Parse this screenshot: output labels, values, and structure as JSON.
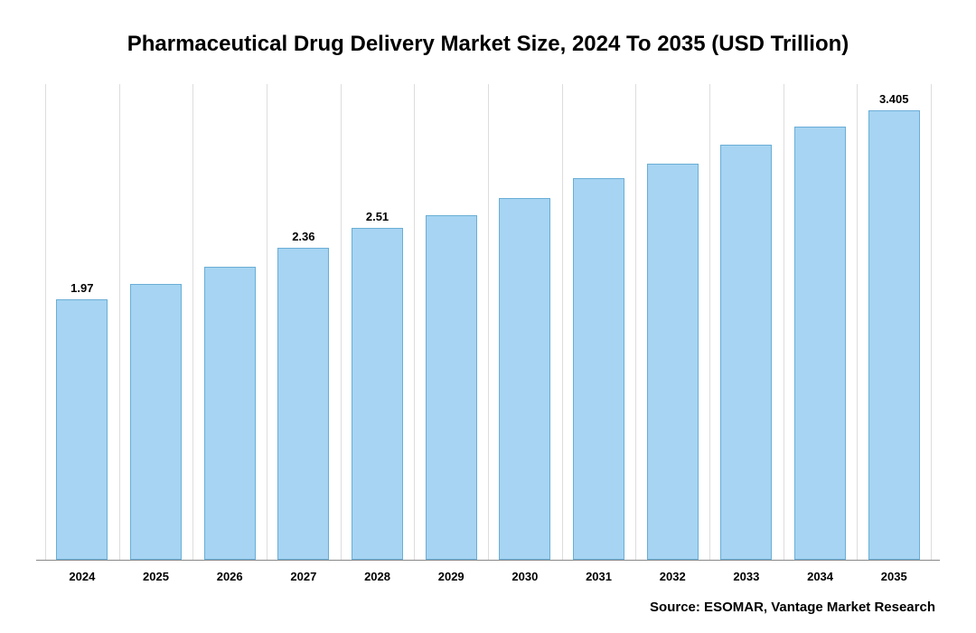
{
  "chart": {
    "type": "bar",
    "title": "Pharmaceutical Drug Delivery Market Size, 2024 To 2035 (USD Trillion)",
    "title_fontsize": 24,
    "title_fontweight": 700,
    "title_color": "#000000",
    "categories": [
      "2024",
      "2025",
      "2026",
      "2027",
      "2028",
      "2029",
      "2030",
      "2031",
      "2032",
      "2033",
      "2034",
      "2035"
    ],
    "values": [
      1.97,
      2.09,
      2.22,
      2.36,
      2.51,
      2.61,
      2.74,
      2.89,
      3.0,
      3.14,
      3.28,
      3.405
    ],
    "value_labels_visible": [
      "1.97",
      "",
      "",
      "2.36",
      "2.51",
      "",
      "",
      "",
      "",
      "",
      "",
      "3.405"
    ],
    "bar_fill_color": "#a6d4f2",
    "bar_border_color": "#6aaed6",
    "bar_width_ratio": 0.7,
    "ylim": [
      0,
      3.6
    ],
    "background_color": "#ffffff",
    "grid_color": "#dddddd",
    "axis_line_color": "#888888",
    "xaxis_label_fontsize": 13,
    "xaxis_label_fontweight": 700,
    "value_label_fontsize": 13,
    "value_label_fontweight": 700,
    "source_text": "Source: ESOMAR, Vantage Market Research",
    "source_fontsize": 15,
    "source_fontweight": 700,
    "source_color": "#000000"
  }
}
